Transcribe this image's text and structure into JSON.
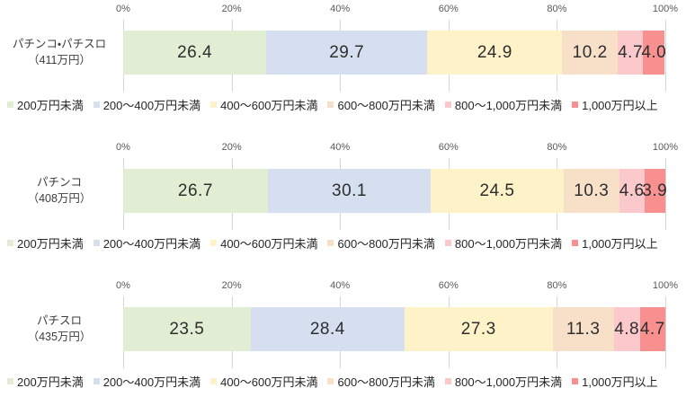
{
  "chart_data": {
    "type": "bar",
    "stacked": true,
    "orientation": "horizontal",
    "unit": "%",
    "xlim": [
      0,
      100
    ],
    "x_ticks": [
      "0%",
      "20%",
      "40%",
      "60%",
      "80%",
      "100%"
    ],
    "grid": true,
    "legend_position": "bottom",
    "segments": [
      "200万円未満",
      "200～400万円未満",
      "400～600万円未満",
      "600～800万円未満",
      "800～1,000万円未満",
      "1,000万円以上"
    ],
    "segment_colors": [
      "#e1eed3",
      "#d6dff0",
      "#fdf2c8",
      "#f8dfc8",
      "#fbc9cc",
      "#f8908f"
    ],
    "bars": [
      {
        "category": "パチンコ・パチスロ",
        "category_note": "（411万円）",
        "values": [
          26.4,
          29.7,
          24.9,
          10.2,
          4.7,
          4.0
        ],
        "value_labels": [
          "26.4",
          "29.7",
          "24.9",
          "10.2",
          "4.7",
          "4.0"
        ]
      },
      {
        "category": "パチンコ",
        "category_note": "（408万円）",
        "values": [
          26.7,
          30.1,
          24.5,
          10.3,
          4.6,
          3.9
        ],
        "value_labels": [
          "26.7",
          "30.1",
          "24.5",
          "10.3",
          "4.6",
          "3.9"
        ]
      },
      {
        "category": "パチスロ",
        "category_note": "（435万円）",
        "values": [
          23.5,
          28.4,
          27.3,
          11.3,
          4.8,
          4.7
        ],
        "value_labels": [
          "23.5",
          "28.4",
          "27.3",
          "11.3",
          "4.8",
          "4.7"
        ]
      }
    ]
  }
}
